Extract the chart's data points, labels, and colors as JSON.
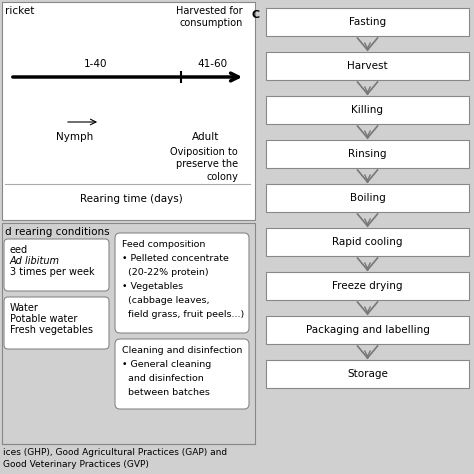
{
  "background_color": "#d0d0d0",
  "flow_steps": [
    "Fasting",
    "Harvest",
    "Killing",
    "Rinsing",
    "Boiling",
    "Rapid cooling",
    "Freeze drying",
    "Packaging and labelling",
    "Storage"
  ],
  "panel_c_label": "C",
  "timeline_label1": "1-40",
  "timeline_label2": "41-60",
  "nymph_label": "Nymph",
  "adult_label": "Adult",
  "harvested_text": "Harvested for\nconsumption",
  "oviposition_text": "Oviposition to\npreserve the\ncolony",
  "rearing_time_text": "Rearing time (days)",
  "bottom_panel_title": "d rearing conditions",
  "feed_box_title": "Feed composition",
  "feed_box_line1": "• Pelleted concentrate",
  "feed_box_line2": "  (20-22% protein)",
  "feed_box_line3": "• Vegetables",
  "feed_box_line4": "  (cabbage leaves,",
  "feed_box_line5": "  field grass, fruit peels...)",
  "cleaning_box_title": "Cleaning and disinfection",
  "cleaning_box_line1": "• General cleaning",
  "cleaning_box_line2": "  and disinfection",
  "cleaning_box_line3": "  between batches",
  "left_box1_line1": "eed",
  "left_box1_line2": "Ad libitum",
  "left_box1_line3": "3 times per week",
  "left_box2_line1": "Water",
  "left_box2_line2": "Potable water",
  "left_box2_line3": "Fresh vegetables",
  "bottom_text1": "ices (GHP), Good Agricultural Practices (GAP) and",
  "bottom_text2": "Good Veterinary Practices (GVP)",
  "top_label": "ricket",
  "gray_bg": "#d0d0d0",
  "white": "#ffffff",
  "box_edge": "#888888",
  "dark": "#333333"
}
